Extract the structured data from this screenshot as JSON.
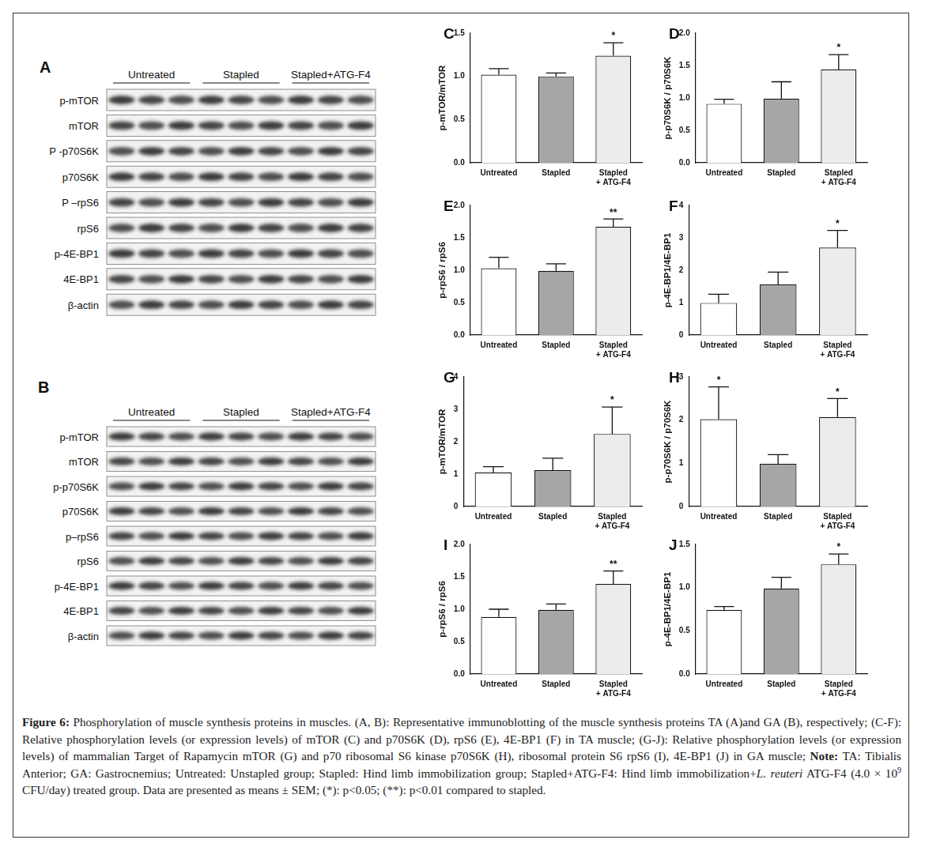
{
  "blots": [
    {
      "panel": "A",
      "groups": [
        "Untreated",
        "Stapled",
        "Stapled+ATG-F4"
      ],
      "rows": [
        "p-mTOR",
        "mTOR",
        "P -p70S6K",
        "p70S6K",
        "P –rpS6",
        "rpS6",
        "p-4E-BP1",
        "4E-BP1",
        "β-actin"
      ]
    },
    {
      "panel": "B",
      "groups": [
        "Untreated",
        "Stapled",
        "Stapled+ATG-F4"
      ],
      "rows": [
        "p-mTOR",
        "mTOR",
        "p-p70S6K",
        "p70S6K",
        "p–rpS6",
        "rpS6",
        "p-4E-BP1",
        "4E-BP1",
        "β-actin"
      ]
    }
  ],
  "chart_data": [
    {
      "type": "bar",
      "title": "C",
      "y_label": "p-mTOR/mTOR",
      "categories": [
        "Untreated",
        "Stapled",
        "Stapled\n+ ATG-F4"
      ],
      "values": [
        1.02,
        1.0,
        1.24
      ],
      "errors": [
        0.07,
        0.04,
        0.15
      ],
      "colors": [
        "#ffffff",
        "#a6a6a6",
        "#ececec"
      ],
      "ylim": [
        0,
        1.5
      ],
      "yticks": [
        {
          "value": 0,
          "label": "0.0"
        },
        0.5,
        {
          "value": 1,
          "label": "1.0"
        },
        1.5
      ],
      "annotations": [
        {
          "category": "Stapled\n+ ATG-F4",
          "text": "*"
        }
      ],
      "grid": false
    },
    {
      "type": "bar",
      "title": "D",
      "y_label": "p-p70S6K / p70S6K",
      "categories": [
        "Untreated",
        "Stapled",
        "Stapled\n+ ATG-F4"
      ],
      "values": [
        0.91,
        0.99,
        1.44
      ],
      "errors": [
        0.07,
        0.26,
        0.23
      ],
      "colors": [
        "#ffffff",
        "#a6a6a6",
        "#ececec"
      ],
      "ylim": [
        0,
        2
      ],
      "yticks": [
        {
          "value": 0,
          "label": "0.0"
        },
        0.5,
        {
          "value": 1,
          "label": "1.0"
        },
        1.5,
        {
          "value": 2,
          "label": "2.0"
        }
      ],
      "annotations": [
        {
          "category": "Stapled\n+ ATG-F4",
          "text": "*"
        }
      ],
      "grid": false
    },
    {
      "type": "bar",
      "title": "E",
      "y_label": "p-rpS6 / rpS6",
      "categories": [
        "Untreated",
        "Stapled",
        "Stapled\n+ ATG-F4"
      ],
      "values": [
        1.03,
        0.99,
        1.67
      ],
      "errors": [
        0.17,
        0.11,
        0.12
      ],
      "colors": [
        "#ffffff",
        "#a6a6a6",
        "#ececec"
      ],
      "ylim": [
        0,
        2
      ],
      "yticks": [
        {
          "value": 0,
          "label": "0.0"
        },
        0.5,
        {
          "value": 1,
          "label": "1.0"
        },
        1.5,
        {
          "value": 2,
          "label": "2.0"
        }
      ],
      "annotations": [
        {
          "category": "Stapled\n+ ATG-F4",
          "text": "**"
        }
      ],
      "grid": false
    },
    {
      "type": "bar",
      "title": "F",
      "y_label": "p-4E-BP1/4E-BP1",
      "categories": [
        "Untreated",
        "Stapled",
        "Stapled\n+ ATG-F4"
      ],
      "values": [
        0.99,
        1.56,
        2.7
      ],
      "errors": [
        0.27,
        0.38,
        0.53
      ],
      "colors": [
        "#ffffff",
        "#a6a6a6",
        "#ececec"
      ],
      "ylim": [
        0,
        4
      ],
      "yticks": [
        0,
        1,
        2,
        3,
        4
      ],
      "annotations": [
        {
          "category": "Stapled\n+ ATG-F4",
          "text": "*"
        }
      ],
      "grid": false
    },
    {
      "type": "bar",
      "title": "G",
      "y_label": "p-mTOR/mTOR",
      "categories": [
        "Untreated",
        "Stapled",
        "Stapled\n+ ATG-F4"
      ],
      "values": [
        1.05,
        1.12,
        2.24
      ],
      "errors": [
        0.18,
        0.37,
        0.83
      ],
      "colors": [
        "#ffffff",
        "#a6a6a6",
        "#ececec"
      ],
      "ylim": [
        0,
        4
      ],
      "yticks": [
        0,
        1,
        2,
        3,
        4
      ],
      "annotations": [
        {
          "category": "Stapled\n+ ATG-F4",
          "text": "*"
        }
      ],
      "grid": false
    },
    {
      "type": "bar",
      "title": "H",
      "y_label": "p-p70S6K / p70S6K",
      "categories": [
        "Untreated",
        "Stapled",
        "Stapled\n+ ATG-F4"
      ],
      "values": [
        2.02,
        0.99,
        2.07
      ],
      "errors": [
        0.75,
        0.21,
        0.43
      ],
      "colors": [
        "#ffffff",
        "#a6a6a6",
        "#ececec"
      ],
      "ylim": [
        0,
        3
      ],
      "yticks": [
        0,
        1,
        2,
        3
      ],
      "annotations": [
        {
          "category": "Untreated",
          "text": "*"
        },
        {
          "category": "Stapled\n+ ATG-F4",
          "text": "*"
        }
      ],
      "grid": false
    },
    {
      "type": "bar",
      "title": "I",
      "y_label": "p-rpS6 / rpS6",
      "categories": [
        "Untreated",
        "Stapled",
        "Stapled\n+ ATG-F4"
      ],
      "values": [
        0.88,
        0.99,
        1.39
      ],
      "errors": [
        0.12,
        0.09,
        0.2
      ],
      "colors": [
        "#ffffff",
        "#a6a6a6",
        "#ececec"
      ],
      "ylim": [
        0,
        2
      ],
      "yticks": [
        {
          "value": 0,
          "label": "0.0"
        },
        0.5,
        {
          "value": 1,
          "label": "1.0"
        },
        1.5,
        {
          "value": 2,
          "label": "2.0"
        }
      ],
      "annotations": [
        {
          "category": "Stapled\n+ ATG-F4",
          "text": "**"
        }
      ],
      "grid": false
    },
    {
      "type": "bar",
      "title": "J",
      "y_label": "p-4E-BP1/4E-BP1",
      "categories": [
        "Untreated",
        "Stapled",
        "Stapled\n+ ATG-F4"
      ],
      "values": [
        0.74,
        0.99,
        1.27
      ],
      "errors": [
        0.04,
        0.13,
        0.12
      ],
      "colors": [
        "#ffffff",
        "#a6a6a6",
        "#ececec"
      ],
      "ylim": [
        0,
        1.5
      ],
      "yticks": [
        {
          "value": 0,
          "label": "0.0"
        },
        0.5,
        {
          "value": 1,
          "label": "1.0"
        },
        1.5
      ],
      "annotations": [
        {
          "category": "Stapled\n+ ATG-F4",
          "text": "*"
        }
      ],
      "grid": false
    }
  ],
  "caption": [
    {
      "text": "Figure 6:",
      "bold": true
    },
    {
      "text": " Phosphorylation of muscle synthesis proteins in muscles. (A, B): Representative immunoblotting of the muscle synthesis proteins TA (A)and GA (B), respectively; (C-F): Relative phosphorylation levels (or expression levels) of mTOR (C) and p70S6K (D), rpS6 (E), 4E-BP1 (F) in TA muscle; (G-J): Relative phosphorylation levels (or expression levels) of mammalian Target of Rapamycin mTOR (G) and p70 ribosomal S6 kinase p70S6K (H), ribosomal protein S6 rpS6 (I), 4E-BP1 (J) in GA muscle; "
    },
    {
      "text": "Note:",
      "bold": true
    },
    {
      "text": " TA: Tibialis Anterior; GA: Gastrocnemius; Untreated: Unstapled group; Stapled: Hind limb immobilization group; Stapled+ATG-F4: Hind limb immobilization+"
    },
    {
      "text": "L. reuteri",
      "italic": true
    },
    {
      "text": " ATG-F4 (4.0 × 10"
    },
    {
      "text": "9",
      "sup": true
    },
    {
      "text": " CFU/day) treated group. Data are presented as means ± SEM; (*): p<0.05; (**): p<0.01 compared to stapled."
    }
  ]
}
